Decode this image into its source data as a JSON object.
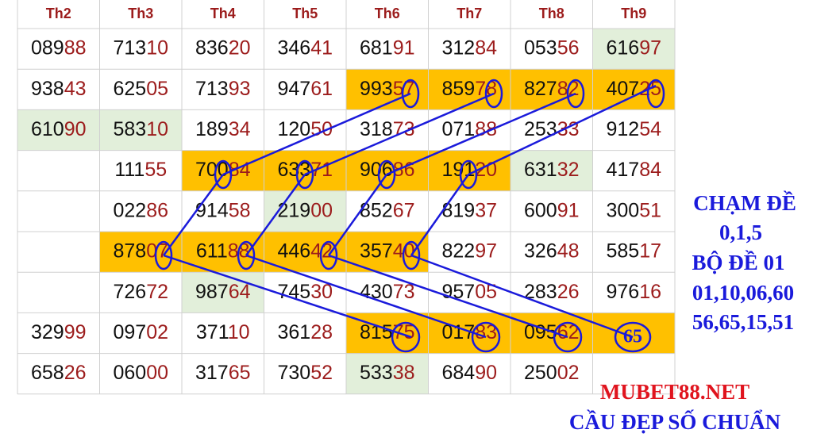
{
  "table": {
    "headers": [
      "Th2",
      "Th3",
      "Th4",
      "Th5",
      "Th6",
      "Th7",
      "Th8",
      "Th9"
    ],
    "rows": [
      [
        {
          "text": "08988"
        },
        {
          "text": "71310"
        },
        {
          "text": "83620"
        },
        {
          "text": "34641"
        },
        {
          "text": "68191"
        },
        {
          "text": "31284"
        },
        {
          "text": "05356"
        },
        {
          "text": "61697",
          "fill": "#e2efda"
        }
      ],
      [
        {
          "text": "93843"
        },
        {
          "text": "62505"
        },
        {
          "text": "71393"
        },
        {
          "text": "94761"
        },
        {
          "text": "99357",
          "fill": "#ffc000"
        },
        {
          "text": "85978",
          "fill": "#ffc000"
        },
        {
          "text": "82782",
          "fill": "#ffc000"
        },
        {
          "text": "40725",
          "fill": "#ffc000"
        }
      ],
      [
        {
          "text": "61090",
          "fill": "#e2efda"
        },
        {
          "text": "58310",
          "fill": "#e2efda"
        },
        {
          "text": "18934"
        },
        {
          "text": "12050"
        },
        {
          "text": "31873"
        },
        {
          "text": "07188"
        },
        {
          "text": "25333"
        },
        {
          "text": "91254"
        }
      ],
      [
        null,
        {
          "text": "11155"
        },
        {
          "text": "70084",
          "fill": "#ffc000"
        },
        {
          "text": "63371",
          "fill": "#ffc000"
        },
        {
          "text": "90686",
          "fill": "#ffc000"
        },
        {
          "text": "19120",
          "fill": "#ffc000"
        },
        {
          "text": "63132",
          "fill": "#e2efda"
        },
        {
          "text": "41784"
        }
      ],
      [
        null,
        {
          "text": "02286"
        },
        {
          "text": "91458"
        },
        {
          "text": "21900",
          "fill": "#e2efda"
        },
        {
          "text": "85267"
        },
        {
          "text": "81937"
        },
        {
          "text": "60091"
        },
        {
          "text": "30051"
        }
      ],
      [
        null,
        {
          "text": "87807",
          "fill": "#ffc000"
        },
        {
          "text": "61188",
          "fill": "#ffc000"
        },
        {
          "text": "44642",
          "fill": "#ffc000"
        },
        {
          "text": "35740",
          "fill": "#ffc000"
        },
        {
          "text": "82297"
        },
        {
          "text": "32648"
        },
        {
          "text": "58517"
        }
      ],
      [
        null,
        {
          "text": "72672"
        },
        {
          "text": "98764",
          "fill": "#e2efda"
        },
        {
          "text": "74530"
        },
        {
          "text": "43073"
        },
        {
          "text": "95705"
        },
        {
          "text": "28326"
        },
        {
          "text": "97616"
        }
      ],
      [
        {
          "text": "32999"
        },
        {
          "text": "09702"
        },
        {
          "text": "37110"
        },
        {
          "text": "36128"
        },
        {
          "text": "81575",
          "fill": "#ffc000"
        },
        {
          "text": "01783",
          "fill": "#ffc000"
        },
        {
          "text": "09562",
          "fill": "#ffc000"
        },
        {
          "fill": "#ffc000"
        }
      ],
      [
        {
          "text": "65826"
        },
        {
          "text": "06000"
        },
        {
          "text": "31765"
        },
        {
          "text": "73052"
        },
        {
          "text": "53338",
          "fill": "#e2efda"
        },
        {
          "text": "68490"
        },
        {
          "text": "25002"
        },
        null
      ]
    ]
  },
  "circled_number": "65",
  "side_notes": [
    "CHẠM ĐỀ",
    "0,1,5",
    "BỘ ĐỀ 01",
    "01,10,06,60",
    "56,65,15,51"
  ],
  "footer": {
    "site": "MUBET88.NET",
    "slogan": "CẦU ĐẸP SỐ CHUẨN"
  }
}
